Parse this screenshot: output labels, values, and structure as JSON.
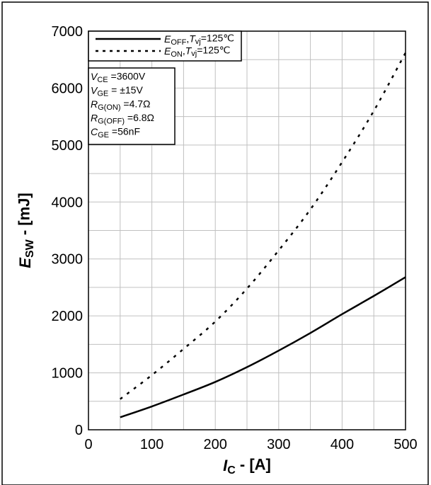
{
  "chart_data": {
    "type": "line",
    "xlabel": {
      "main": "I",
      "sub": "C",
      "rest": " - [A]"
    },
    "ylabel": {
      "main": "E",
      "sub": "SW",
      "rest": " - [mJ]"
    },
    "xlim": [
      0,
      500
    ],
    "ylim": [
      0,
      7000
    ],
    "xticks": [
      0,
      100,
      200,
      300,
      400,
      500
    ],
    "yticks": [
      0,
      1000,
      2000,
      3000,
      4000,
      5000,
      6000,
      7000
    ],
    "grid": true,
    "legend_position": "top-left",
    "series": [
      {
        "name": {
          "main": "E",
          "sub": "OFF",
          "sep": ",",
          "tmain": "T",
          "tsub": "vj",
          "rest": "=125℃"
        },
        "style": "solid",
        "color": "#000000",
        "x": [
          50,
          100,
          150,
          200,
          250,
          300,
          350,
          400,
          450,
          500
        ],
        "y": [
          220,
          410,
          620,
          840,
          1100,
          1390,
          1700,
          2030,
          2350,
          2680
        ]
      },
      {
        "name": {
          "main": "E",
          "sub": "ON",
          "sep": ",",
          "tmain": "T",
          "tsub": "vj",
          "rest": "=125℃"
        },
        "style": "dotted",
        "color": "#000000",
        "x": [
          50,
          100,
          150,
          200,
          250,
          300,
          350,
          400,
          450,
          500
        ],
        "y": [
          540,
          960,
          1420,
          1900,
          2480,
          3150,
          3870,
          4700,
          5600,
          6620
        ]
      }
    ],
    "conditions": [
      {
        "main": "V",
        "sub": "CE",
        "rest": " =3600V"
      },
      {
        "main": "V",
        "sub": "GE",
        "rest": " = ±15V"
      },
      {
        "main": "R",
        "sub": "G(ON)",
        "rest": " =4.7Ω"
      },
      {
        "main": "R",
        "sub": "G(OFF)",
        "rest": " =6.8Ω"
      },
      {
        "main": "C",
        "sub": "GE",
        "rest": " =56nF"
      }
    ]
  }
}
